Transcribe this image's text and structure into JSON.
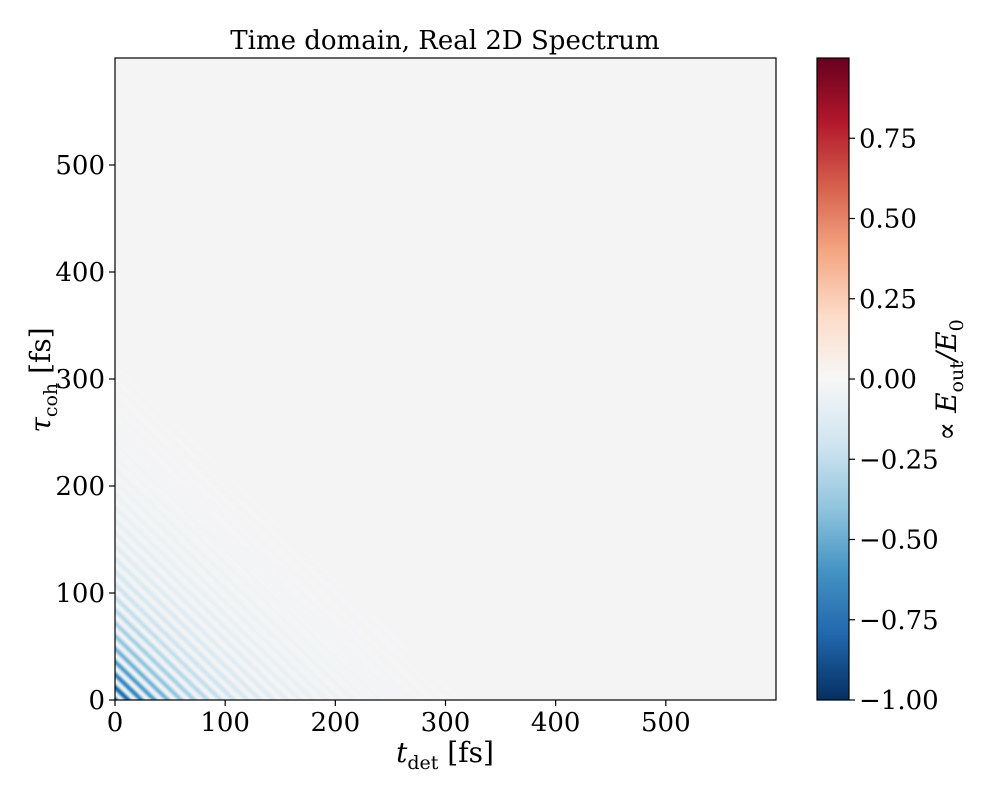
{
  "chart_data": [
    {
      "type": "heatmap",
      "title": "Time domain, Real 2D Spectrum",
      "xlabel": {
        "main": "t",
        "sub": "det",
        "unit": " [fs]"
      },
      "ylabel": {
        "main": "τ",
        "sub": "coh",
        "unit": " [fs]"
      },
      "xlim": [
        0,
        600
      ],
      "ylim": [
        0,
        600
      ],
      "xticks": [
        "0",
        "100",
        "200",
        "300",
        "400",
        "500"
      ],
      "xtick_values": [
        0,
        100,
        200,
        300,
        400,
        500
      ],
      "yticks": [
        "0",
        "100",
        "200",
        "300",
        "400",
        "500"
      ],
      "ytick_values": [
        0,
        100,
        200,
        300,
        400,
        500
      ],
      "colormap": "RdBu_r",
      "background_color": "#f4f4f4",
      "signal": {
        "description_kind": "damped oscillating diagonal fringes concentrated near origin",
        "peak_value": -1.0,
        "decay_fs": 70,
        "fringe_period_fs": 12
      },
      "colorbar": {
        "label": {
          "prefix": "∝ E",
          "sub1": "out",
          "mid": "/E",
          "sub2": "0"
        },
        "range": [
          -1.0,
          1.0
        ],
        "ticks": [
          "0.75",
          "0.50",
          "0.25",
          "0.00",
          "−0.25",
          "−0.50",
          "−0.75",
          "−1.00"
        ],
        "tick_values": [
          0.75,
          0.5,
          0.25,
          0.0,
          -0.25,
          -0.5,
          -0.75,
          -1.0
        ],
        "colors": [
          "#053061",
          "#2166ac",
          "#4393c3",
          "#92c5de",
          "#d1e5f0",
          "#f7f7f7",
          "#fddbc7",
          "#f4a582",
          "#d6604d",
          "#b2182b",
          "#67001f"
        ]
      }
    }
  ]
}
